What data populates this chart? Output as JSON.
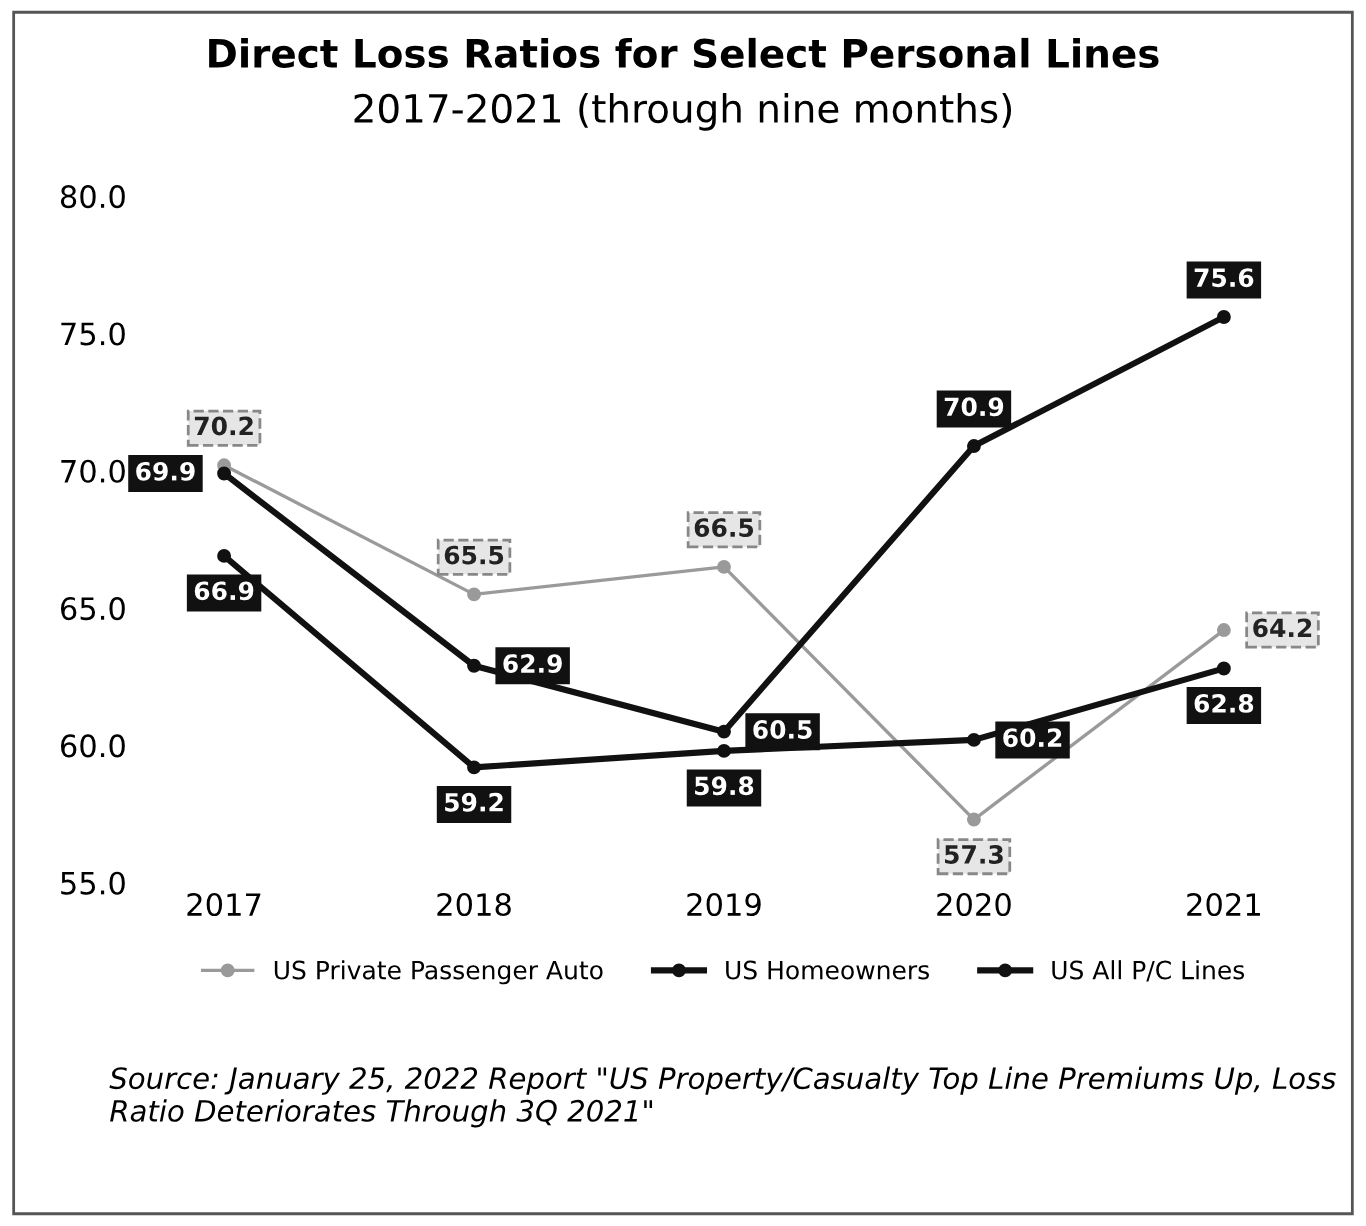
{
  "chart_data": {
    "type": "line",
    "title": "Direct Loss Ratios for Select Personal Lines",
    "subtitle": "2017-2021 (through nine months)",
    "categories": [
      "2017",
      "2018",
      "2019",
      "2020",
      "2021"
    ],
    "series": [
      {
        "name": "US Private Passenger Auto",
        "color": "#9a9a9a",
        "values": [
          70.2,
          65.5,
          66.5,
          57.3,
          64.2
        ]
      },
      {
        "name": "US Homeowners",
        "color": "#111111",
        "values": [
          69.9,
          62.9,
          60.5,
          70.9,
          75.6
        ]
      },
      {
        "name": "US All P/C Lines",
        "color": "#111111",
        "values": [
          66.9,
          59.2,
          59.8,
          60.2,
          62.8
        ]
      }
    ],
    "ylim": [
      55,
      80
    ],
    "yticks": [
      {
        "value": 55,
        "label": "55.0"
      },
      {
        "value": 60,
        "label": "60.0"
      },
      {
        "value": 65,
        "label": "65.0"
      },
      {
        "value": 70,
        "label": "70.0"
      },
      {
        "value": 75,
        "label": "75.0"
      },
      {
        "value": 80,
        "label": "80.0"
      }
    ],
    "data_labels": true,
    "marker": "circle",
    "line_style": "solid",
    "legend": "bottom",
    "grid": false,
    "annotations": [
      "Source: January 25, 2022 Report \"US Property/Casualty Top Line Premiums Up, Loss Ratio Deteriorates Through 3Q 2021\""
    ]
  }
}
